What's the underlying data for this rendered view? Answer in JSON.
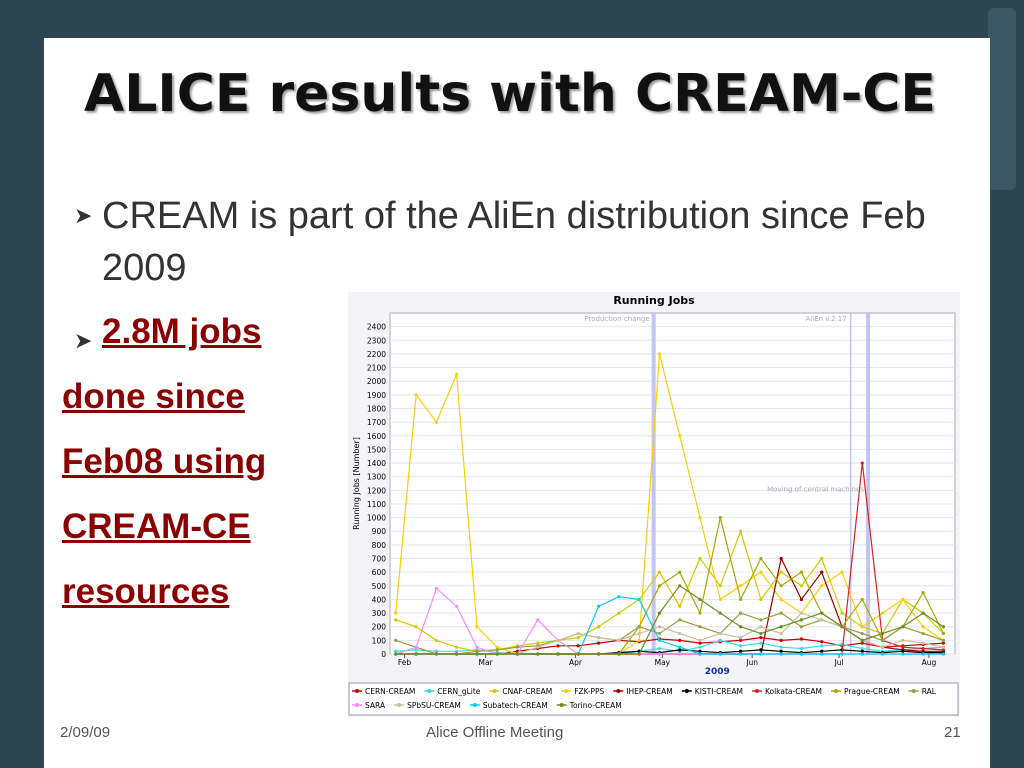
{
  "slide": {
    "title": "ALICE results with CREAM-CE",
    "bullet": "CREAM is part of the AliEn distribution since Feb 2009",
    "highlight_lines": [
      "2.8M jobs",
      "done since",
      "Feb08 using",
      "CREAM-CE",
      "resources"
    ],
    "footer": {
      "date": "2/09/09",
      "center": "Alice Offline Meeting",
      "page": "21"
    }
  },
  "chart_data": {
    "type": "line",
    "title": "Running Jobs",
    "ylabel": "Running Jobs [Number]",
    "xlabel": "2009",
    "xlim": [
      27,
      222
    ],
    "xticks": [
      {
        "value": 32,
        "label": "Feb"
      },
      {
        "value": 60,
        "label": "Mar"
      },
      {
        "value": 91,
        "label": "Apr"
      },
      {
        "value": 121,
        "label": "May"
      },
      {
        "value": 152,
        "label": "Jun"
      },
      {
        "value": 182,
        "label": "Jul"
      },
      {
        "value": 213,
        "label": "Aug"
      }
    ],
    "ylim": [
      0,
      2500
    ],
    "yticks": [
      0,
      100,
      200,
      300,
      400,
      500,
      600,
      700,
      800,
      900,
      1000,
      1100,
      1200,
      1300,
      1400,
      1500,
      1600,
      1700,
      1800,
      1900,
      2000,
      2100,
      2200,
      2300,
      2400
    ],
    "grid": true,
    "annotations": [
      {
        "text": "Production change",
        "x": 118
      },
      {
        "text": "AliEn v.2.17",
        "x": 186
      },
      {
        "text": "Moving of central machines",
        "x": 192
      }
    ],
    "x": [
      29,
      36,
      43,
      50,
      57,
      64,
      71,
      78,
      85,
      92,
      99,
      106,
      113,
      120,
      127,
      134,
      141,
      148,
      155,
      162,
      169,
      176,
      183,
      190,
      197,
      204,
      211,
      218
    ],
    "series": [
      {
        "name": "CERN-CREAM",
        "color": "#cc0000",
        "values": [
          0,
          0,
          0,
          0,
          0,
          0,
          20,
          40,
          60,
          60,
          80,
          100,
          90,
          110,
          100,
          80,
          90,
          100,
          120,
          100,
          110,
          90,
          60,
          80,
          50,
          60,
          70,
          80
        ]
      },
      {
        "name": "CERN_gLite",
        "color": "#33e0e0",
        "values": [
          20,
          30,
          20,
          20,
          30,
          10,
          0,
          0,
          0,
          0,
          0,
          0,
          20,
          40,
          20,
          50,
          100,
          60,
          80,
          50,
          40,
          60,
          70,
          40,
          20,
          30,
          40,
          50
        ]
      },
      {
        "name": "CNAF-CREAM",
        "color": "#d4c800",
        "values": [
          250,
          200,
          100,
          50,
          20,
          30,
          60,
          80,
          100,
          120,
          200,
          300,
          400,
          600,
          350,
          700,
          500,
          900,
          400,
          600,
          500,
          700,
          300,
          200,
          150,
          400,
          300,
          150
        ]
      },
      {
        "name": "FZK-PPS",
        "color": "#ffcc00",
        "values": [
          300,
          1900,
          1700,
          2050,
          200,
          50,
          0,
          0,
          0,
          0,
          0,
          0,
          100,
          2200,
          1600,
          1000,
          400,
          500,
          600,
          400,
          300,
          500,
          600,
          200,
          300,
          400,
          200,
          100
        ]
      },
      {
        "name": "IHEP-CREAM",
        "color": "#990000",
        "values": [
          0,
          0,
          0,
          0,
          0,
          0,
          0,
          0,
          0,
          0,
          0,
          0,
          0,
          0,
          0,
          0,
          0,
          0,
          0,
          700,
          400,
          600,
          200,
          100,
          50,
          30,
          20,
          20
        ]
      },
      {
        "name": "KISTI-CREAM",
        "color": "#000000",
        "values": [
          0,
          0,
          0,
          0,
          0,
          0,
          0,
          0,
          0,
          0,
          0,
          10,
          20,
          10,
          30,
          20,
          10,
          20,
          30,
          20,
          10,
          20,
          30,
          20,
          10,
          20,
          10,
          10
        ]
      },
      {
        "name": "Kolkata-CREAM",
        "color": "#e02020",
        "values": [
          0,
          0,
          0,
          0,
          0,
          0,
          0,
          0,
          0,
          0,
          0,
          0,
          0,
          0,
          0,
          0,
          0,
          0,
          0,
          0,
          0,
          0,
          0,
          1400,
          100,
          50,
          40,
          30
        ]
      },
      {
        "name": "Prague-CREAM",
        "color": "#a8a800",
        "values": [
          0,
          0,
          0,
          0,
          0,
          0,
          0,
          0,
          0,
          0,
          0,
          0,
          200,
          500,
          600,
          300,
          1000,
          400,
          700,
          500,
          600,
          300,
          200,
          400,
          100,
          200,
          450,
          150
        ]
      },
      {
        "name": "RAL",
        "color": "#9c9c3c",
        "values": [
          100,
          50,
          0,
          0,
          20,
          30,
          50,
          60,
          100,
          150,
          120,
          100,
          200,
          150,
          250,
          200,
          150,
          300,
          250,
          300,
          200,
          250,
          200,
          150,
          100,
          200,
          150,
          100
        ]
      },
      {
        "name": "SARA",
        "color": "#ff88ff",
        "values": [
          0,
          50,
          480,
          350,
          50,
          0,
          0,
          250,
          100,
          0,
          0,
          0,
          0,
          0,
          0,
          0,
          0,
          0,
          0,
          0,
          0,
          0,
          0,
          0,
          0,
          0,
          0,
          0
        ]
      },
      {
        "name": "SPbSU-CREAM",
        "color": "#c8c0a0",
        "values": [
          0,
          0,
          0,
          0,
          0,
          0,
          0,
          50,
          100,
          150,
          120,
          100,
          150,
          200,
          150,
          100,
          150,
          120,
          200,
          150,
          300,
          250,
          200,
          100,
          50,
          100,
          80,
          50
        ]
      },
      {
        "name": "Subatech-CREAM",
        "color": "#00ccff",
        "values": [
          0,
          0,
          0,
          0,
          0,
          0,
          0,
          0,
          0,
          0,
          350,
          420,
          400,
          100,
          50,
          0,
          0,
          0,
          0,
          0,
          0,
          0,
          0,
          0,
          0,
          0,
          0,
          0
        ]
      },
      {
        "name": "Torino-CREAM",
        "color": "#6b8e23",
        "values": [
          0,
          0,
          0,
          0,
          0,
          0,
          0,
          0,
          0,
          0,
          0,
          0,
          0,
          300,
          500,
          400,
          300,
          200,
          150,
          200,
          250,
          300,
          200,
          100,
          150,
          200,
          300,
          200
        ]
      }
    ]
  }
}
